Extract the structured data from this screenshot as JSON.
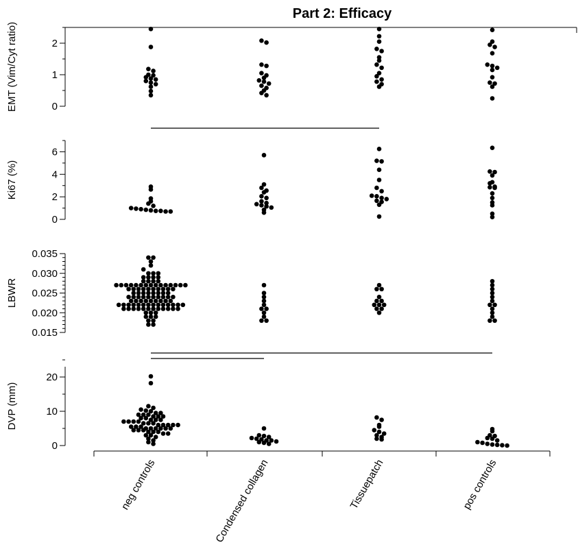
{
  "chart_data": {
    "type": "scatter",
    "title": "Part 2: Efficacy",
    "categories": [
      "neg controls",
      "Condensed collagen",
      "Tissuepatch",
      "pos controls"
    ],
    "panels": [
      {
        "id": "emt",
        "ylabel": "EMT (Vim/Cyt ratio)",
        "ylim": [
          0,
          2.5
        ],
        "yticks": [
          "0",
          "1",
          "2"
        ],
        "ytick_values": [
          0,
          1,
          2
        ],
        "minor_step": 0.5,
        "groups": [
          [
            2.45,
            1.88,
            1.18,
            1.12,
            1.0,
            0.98,
            0.92,
            0.88,
            0.85,
            0.8,
            0.75,
            0.7,
            0.62,
            0.48,
            0.35
          ],
          [
            2.08,
            2.02,
            1.32,
            1.28,
            1.05,
            0.98,
            0.9,
            0.82,
            0.78,
            0.72,
            0.65,
            0.58,
            0.5,
            0.42,
            0.35
          ],
          [
            2.45,
            2.22,
            2.05,
            1.82,
            1.75,
            1.55,
            1.45,
            1.32,
            1.22,
            1.05,
            0.95,
            0.85,
            0.78,
            0.7,
            0.62
          ],
          [
            2.42,
            2.05,
            1.95,
            1.88,
            1.68,
            1.32,
            1.28,
            1.22,
            1.15,
            0.92,
            0.75,
            0.72,
            0.62,
            0.25
          ]
        ]
      },
      {
        "id": "ki67",
        "ylabel": "Ki67 (%)",
        "ylim": [
          0,
          7
        ],
        "yticks": [
          "0",
          "2",
          "4",
          "6"
        ],
        "ytick_values": [
          0,
          2,
          4,
          6
        ],
        "minor_step": 1,
        "groups": [
          [
            2.9,
            2.65,
            1.85,
            1.6,
            1.4,
            1.2,
            1.0,
            0.95,
            0.9,
            0.85,
            0.8,
            0.75,
            0.75,
            0.7,
            0.7
          ],
          [
            5.7,
            3.1,
            2.8,
            2.55,
            2.4,
            2.05,
            1.9,
            1.6,
            1.45,
            1.35,
            1.25,
            1.15,
            1.05,
            0.85,
            0.6
          ],
          [
            6.25,
            5.2,
            5.15,
            4.4,
            3.5,
            2.8,
            2.5,
            2.1,
            2.05,
            1.9,
            1.8,
            1.65,
            1.55,
            1.3,
            0.25
          ],
          [
            6.35,
            4.25,
            4.2,
            3.9,
            3.3,
            3.2,
            2.9,
            2.85,
            2.8,
            2.3,
            1.9,
            1.5,
            1.25,
            0.5,
            0.2
          ]
        ]
      },
      {
        "id": "lbwr",
        "ylabel": "LBWR",
        "ylim": [
          0.015,
          0.035
        ],
        "yticks": [
          "0.015",
          "0.020",
          "0.025",
          "0.030",
          "0.035"
        ],
        "ytick_values": [
          0.015,
          0.02,
          0.025,
          0.03,
          0.035
        ],
        "minor_step": 0.001,
        "groups": [
          [
            0.034,
            0.034,
            0.033,
            0.032,
            0.031,
            0.03,
            0.03,
            0.03,
            0.029,
            0.029,
            0.029,
            0.029,
            0.028,
            0.028,
            0.028,
            0.028,
            0.027,
            0.027,
            0.027,
            0.027,
            0.027,
            0.027,
            0.027,
            0.027,
            0.027,
            0.027,
            0.027,
            0.027,
            0.027,
            0.027,
            0.027,
            0.026,
            0.026,
            0.026,
            0.026,
            0.026,
            0.026,
            0.026,
            0.026,
            0.026,
            0.026,
            0.025,
            0.025,
            0.025,
            0.025,
            0.025,
            0.025,
            0.025,
            0.025,
            0.024,
            0.024,
            0.024,
            0.024,
            0.024,
            0.024,
            0.024,
            0.024,
            0.024,
            0.024,
            0.023,
            0.023,
            0.023,
            0.023,
            0.023,
            0.023,
            0.023,
            0.023,
            0.023,
            0.022,
            0.022,
            0.022,
            0.022,
            0.022,
            0.022,
            0.022,
            0.022,
            0.022,
            0.022,
            0.022,
            0.022,
            0.022,
            0.022,
            0.021,
            0.021,
            0.021,
            0.021,
            0.021,
            0.021,
            0.021,
            0.021,
            0.021,
            0.021,
            0.021,
            0.021,
            0.02,
            0.02,
            0.02,
            0.019,
            0.019,
            0.019,
            0.018,
            0.018,
            0.017,
            0.017
          ],
          [
            0.027,
            0.025,
            0.024,
            0.023,
            0.022,
            0.021,
            0.021,
            0.02,
            0.019,
            0.018,
            0.018
          ],
          [
            0.027,
            0.026,
            0.026,
            0.024,
            0.023,
            0.023,
            0.022,
            0.022,
            0.022,
            0.021,
            0.021,
            0.02
          ],
          [
            0.028,
            0.027,
            0.026,
            0.025,
            0.024,
            0.023,
            0.022,
            0.022,
            0.021,
            0.02,
            0.019,
            0.018,
            0.018
          ]
        ]
      },
      {
        "id": "dvp",
        "ylabel": "DVP (mm)",
        "ylim": [
          0,
          23
        ],
        "yticks": [
          "0",
          "10",
          "20"
        ],
        "ytick_values": [
          0,
          10,
          20
        ],
        "minor_step": 5,
        "groups": [
          [
            20.2,
            18.2,
            11.5,
            11.0,
            10.5,
            10.2,
            10.0,
            9.5,
            9.5,
            9.0,
            9.0,
            9.0,
            8.5,
            8.5,
            8.5,
            8.0,
            8.0,
            7.5,
            7.5,
            7.5,
            7.0,
            7.0,
            7.0,
            7.0,
            6.5,
            6.5,
            6.5,
            6.0,
            6.0,
            6.0,
            6.0,
            6.0,
            5.5,
            5.5,
            5.5,
            5.0,
            5.0,
            5.0,
            5.0,
            5.0,
            5.0,
            4.5,
            4.5,
            4.5,
            4.0,
            4.0,
            4.0,
            3.5,
            3.5,
            3.0,
            3.0,
            2.5,
            2.0,
            1.5,
            1.0,
            0.5
          ],
          [
            5.0,
            3.0,
            2.8,
            2.5,
            2.2,
            2.0,
            1.8,
            1.5,
            1.5,
            1.2,
            1.0,
            0.8,
            0.5
          ],
          [
            8.2,
            7.5,
            6.0,
            5.5,
            4.5,
            4.0,
            3.5,
            3.0,
            2.5,
            2.0,
            1.8
          ],
          [
            4.8,
            4.2,
            3.0,
            2.8,
            2.2,
            2.0,
            1.5,
            1.0,
            0.8,
            0.5,
            0.3,
            0.2,
            0.1,
            0.0
          ]
        ]
      }
    ],
    "significance_bars": [
      {
        "panel": "emt",
        "from": "neg controls",
        "to": "Tissuepatch"
      },
      {
        "panel": "lbwr",
        "from": "neg controls",
        "to": "pos controls"
      },
      {
        "panel": "lbwr",
        "from": "neg controls",
        "to": "Condensed collagen"
      }
    ]
  }
}
